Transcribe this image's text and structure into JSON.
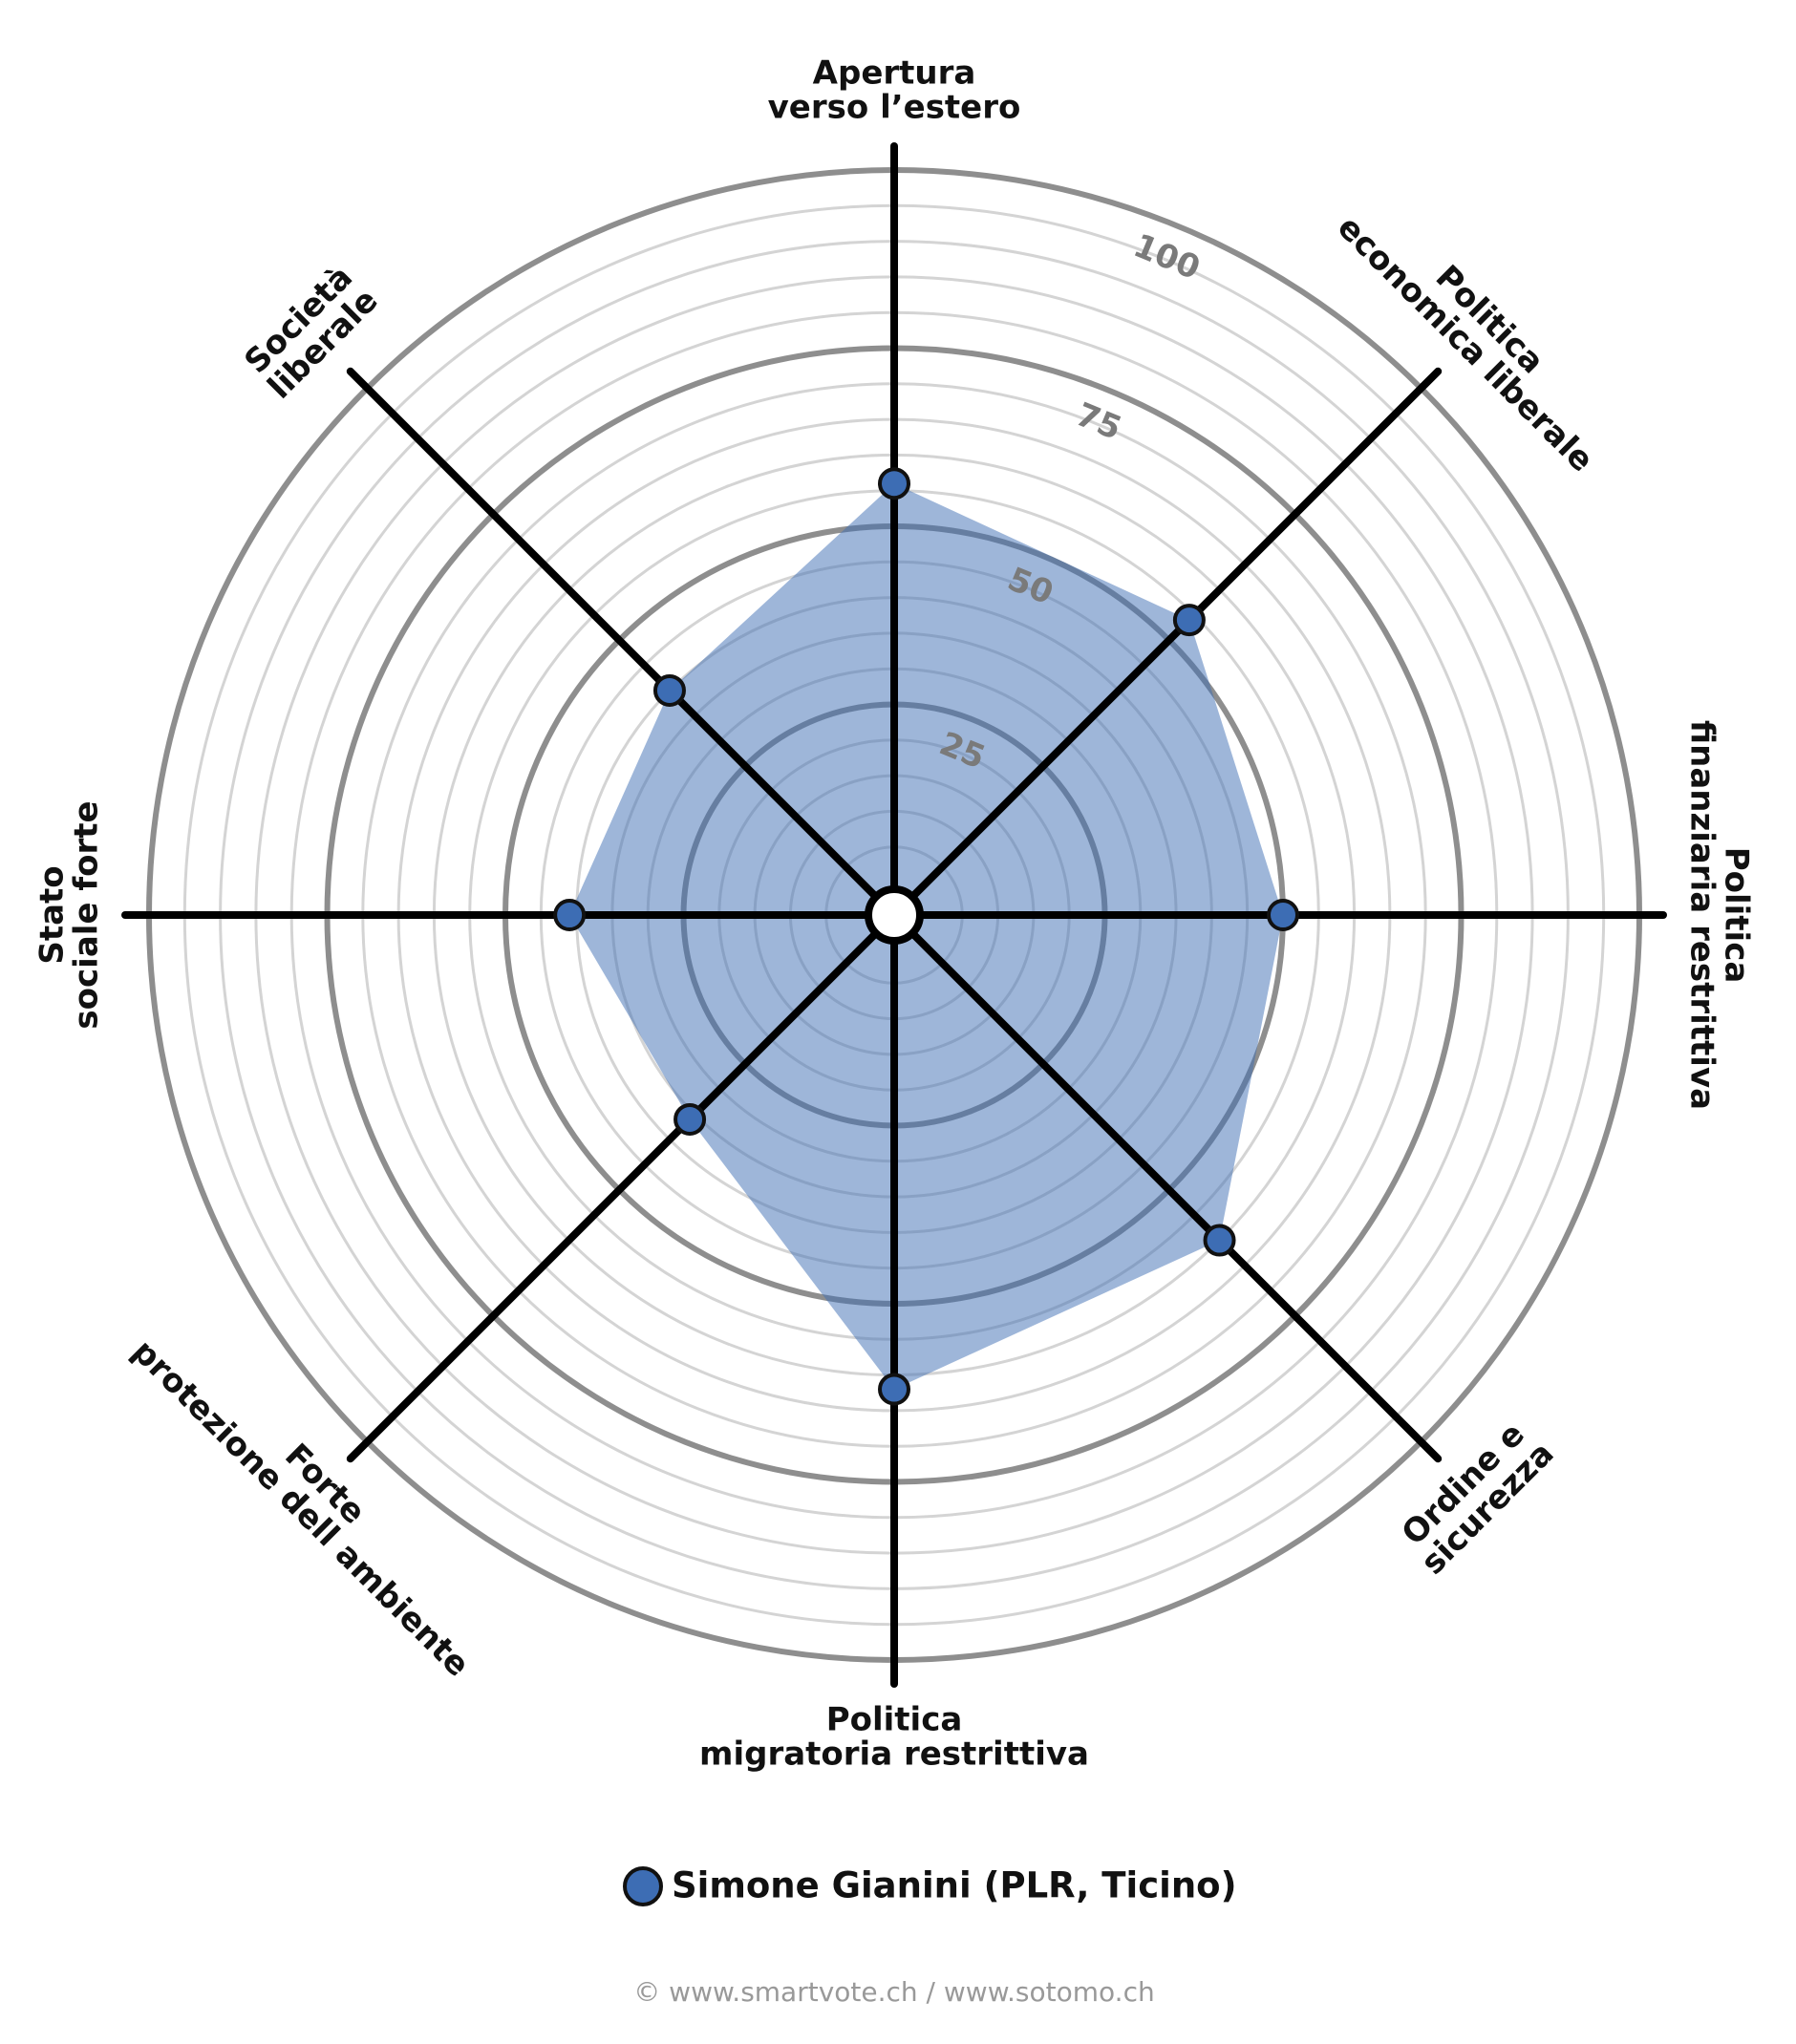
{
  "chart_data": {
    "type": "radar",
    "axes": [
      [
        "Apertura",
        "verso l’estero"
      ],
      [
        "Politica",
        "economica liberale"
      ],
      [
        "Politica",
        "finanziaria restrittiva"
      ],
      [
        "Ordine e",
        "sicurezza"
      ],
      [
        "Politica",
        "migratoria restrittiva"
      ],
      [
        "Forte",
        "protezione dell ambiente"
      ],
      [
        "Stato",
        "sociale forte"
      ],
      [
        "Società",
        "liberale"
      ]
    ],
    "series": [
      {
        "name": "Simone Gianini (PLR, Ticino)",
        "color": "#3d6db4",
        "values": [
          56,
          54,
          50,
          60,
          62,
          36,
          41,
          40
        ]
      }
    ],
    "ylim": [
      0,
      100
    ],
    "yticks": [
      25,
      50,
      75,
      100
    ],
    "grid": true,
    "footer": "© www.smartvote.ch / www.sotomo.ch"
  }
}
